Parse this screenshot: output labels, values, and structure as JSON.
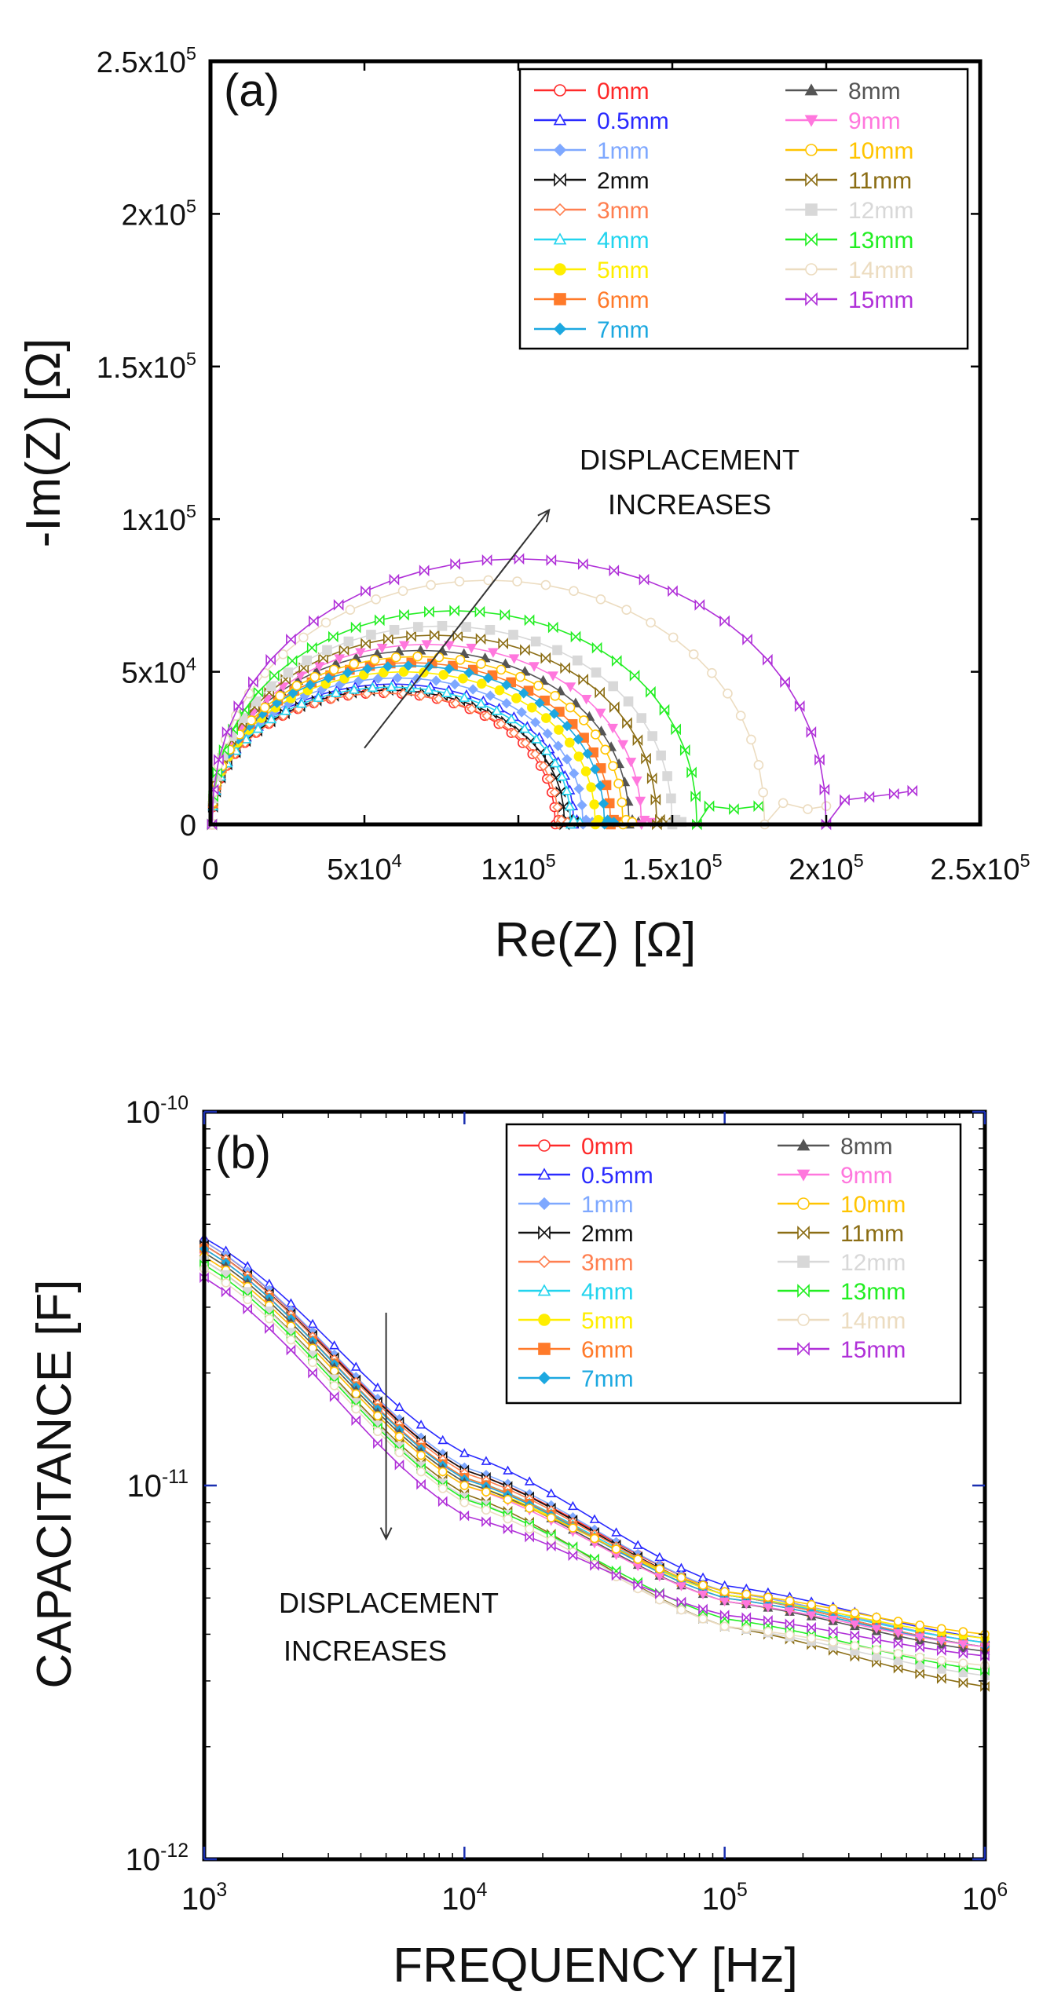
{
  "legend_entries": [
    {
      "label": "0mm",
      "color": "#ff2a2a",
      "marker": "circle-open"
    },
    {
      "label": "0.5mm",
      "color": "#2a2aff",
      "marker": "triangle-open"
    },
    {
      "label": "1mm",
      "color": "#7ea8ff",
      "marker": "diamond-filled"
    },
    {
      "label": "2mm",
      "color": "#111111",
      "marker": "bowtie"
    },
    {
      "label": "3mm",
      "color": "#ff7f50",
      "marker": "diamond-open"
    },
    {
      "label": "4mm",
      "color": "#22d4ee",
      "marker": "triangle-open"
    },
    {
      "label": "5mm",
      "color": "#ffee00",
      "marker": "circle-filled"
    },
    {
      "label": "6mm",
      "color": "#ff7a2a",
      "marker": "square-filled"
    },
    {
      "label": "7mm",
      "color": "#1ca8e0",
      "marker": "diamond-filled"
    },
    {
      "label": "8mm",
      "color": "#555555",
      "marker": "triangle-filled"
    },
    {
      "label": "9mm",
      "color": "#ff77dd",
      "marker": "triangle-down-filled"
    },
    {
      "label": "10mm",
      "color": "#ffc400",
      "marker": "circle-open"
    },
    {
      "label": "11mm",
      "color": "#8b6d14",
      "marker": "bowtie"
    },
    {
      "label": "12mm",
      "color": "#d8d8d8",
      "marker": "square-filled"
    },
    {
      "label": "13mm",
      "color": "#22ee22",
      "marker": "bowtie"
    },
    {
      "label": "14mm",
      "color": "#ecdcc0",
      "marker": "circle-open"
    },
    {
      "label": "15mm",
      "color": "#b030d8",
      "marker": "bowtie"
    }
  ],
  "chart_data": [
    {
      "type": "scatter",
      "panel_label": "(a)",
      "xlabel": "Re(Z) [Ω]",
      "ylabel": "-Im(Z) [Ω]",
      "xlim": [
        0,
        250000
      ],
      "ylim": [
        0,
        250000
      ],
      "xticks": [
        0,
        50000,
        100000,
        150000,
        200000,
        250000
      ],
      "yticks": [
        0,
        50000,
        100000,
        150000,
        200000,
        250000
      ],
      "xtick_labels": [
        {
          "base": "0",
          "exp": ""
        },
        {
          "base": "5x10",
          "exp": "4"
        },
        {
          "base": "1x10",
          "exp": "5"
        },
        {
          "base": "1.5x10",
          "exp": "5"
        },
        {
          "base": "2x10",
          "exp": "5"
        },
        {
          "base": "2.5x10",
          "exp": "5"
        }
      ],
      "ytick_labels": [
        {
          "base": "0",
          "exp": ""
        },
        {
          "base": "5x10",
          "exp": "4"
        },
        {
          "base": "1x10",
          "exp": "5"
        },
        {
          "base": "1.5x10",
          "exp": "5"
        },
        {
          "base": "2x10",
          "exp": "5"
        },
        {
          "base": "2.5x10",
          "exp": "5"
        }
      ],
      "annotation": {
        "lines": [
          "DISPLACEMENT",
          "INCREASES"
        ],
        "arrow_from": [
          50000,
          25000
        ],
        "arrow_to": [
          110000,
          103000
        ]
      },
      "series": [
        {
          "name": "0mm",
          "r0": 500,
          "r1": 112000,
          "peak": 43000,
          "tail": [
            [
              113000,
              1500
            ],
            [
              115000,
              800
            ]
          ]
        },
        {
          "name": "0.5mm",
          "r0": 500,
          "r1": 118000,
          "peak": 46000,
          "tail": [
            [
              119000,
              1500
            ],
            [
              121000,
              800
            ]
          ]
        },
        {
          "name": "1mm",
          "r0": 500,
          "r1": 121000,
          "peak": 48000,
          "tail": [
            [
              122000,
              1500
            ],
            [
              124000,
              800
            ]
          ]
        },
        {
          "name": "2mm",
          "r0": 500,
          "r1": 115000,
          "peak": 44000,
          "tail": [
            [
              116000,
              1500
            ],
            [
              118000,
              800
            ]
          ]
        },
        {
          "name": "3mm",
          "r0": 500,
          "r1": 113000,
          "peak": 43000,
          "tail": [
            [
              114000,
              1500
            ],
            [
              116000,
              800
            ]
          ]
        },
        {
          "name": "4mm",
          "r0": 500,
          "r1": 117000,
          "peak": 45000,
          "tail": [
            [
              118000,
              1500
            ],
            [
              120000,
              800
            ]
          ]
        },
        {
          "name": "5mm",
          "r0": 500,
          "r1": 125000,
          "peak": 50000,
          "tail": [
            [
              126000,
              1500
            ],
            [
              128000,
              800
            ]
          ]
        },
        {
          "name": "6mm",
          "r0": 500,
          "r1": 130000,
          "peak": 53000,
          "tail": [
            [
              131000,
              1500
            ],
            [
              133000,
              800
            ]
          ]
        },
        {
          "name": "7mm",
          "r0": 500,
          "r1": 128000,
          "peak": 52000,
          "tail": [
            [
              129000,
              1500
            ],
            [
              131000,
              800
            ]
          ]
        },
        {
          "name": "8mm",
          "r0": 500,
          "r1": 136000,
          "peak": 57000,
          "tail": [
            [
              137000,
              1500
            ],
            [
              139000,
              800
            ]
          ]
        },
        {
          "name": "9mm",
          "r0": 500,
          "r1": 140000,
          "peak": 59000,
          "tail": [
            [
              141000,
              1500
            ],
            [
              143000,
              800
            ]
          ]
        },
        {
          "name": "10mm",
          "r0": 500,
          "r1": 134000,
          "peak": 55000,
          "tail": [
            [
              135000,
              1500
            ],
            [
              137000,
              800
            ]
          ]
        },
        {
          "name": "11mm",
          "r0": 500,
          "r1": 145000,
          "peak": 62000,
          "tail": [
            [
              146000,
              1500
            ],
            [
              148000,
              800
            ]
          ]
        },
        {
          "name": "12mm",
          "r0": 500,
          "r1": 150000,
          "peak": 65000,
          "tail": [
            [
              151000,
              1500
            ],
            [
              153000,
              800
            ]
          ]
        },
        {
          "name": "13mm",
          "r0": 500,
          "r1": 158000,
          "peak": 70000,
          "tail": [
            [
              162000,
              6000
            ],
            [
              170000,
              5000
            ],
            [
              178000,
              6000
            ]
          ]
        },
        {
          "name": "14mm",
          "r0": 500,
          "r1": 180000,
          "peak": 80000,
          "tail": [
            [
              186000,
              7000
            ],
            [
              194000,
              5000
            ],
            [
              200000,
              6000
            ]
          ]
        },
        {
          "name": "15mm",
          "r0": 500,
          "r1": 200000,
          "peak": 87000,
          "tail": [
            [
              206000,
              8000
            ],
            [
              214000,
              9000
            ],
            [
              222000,
              10000
            ],
            [
              228000,
              11000
            ]
          ]
        }
      ]
    },
    {
      "type": "scatter",
      "panel_label": "(b)",
      "xscale": "log",
      "yscale": "log",
      "xlabel": "FREQUENCY [Hz]",
      "ylabel": "CAPACITANCE [F]",
      "xlim": [
        1000,
        1000000
      ],
      "ylim": [
        1e-12,
        1e-10
      ],
      "xtick_labels": [
        {
          "base": "10",
          "exp": "3"
        },
        {
          "base": "10",
          "exp": "4"
        },
        {
          "base": "10",
          "exp": "5"
        },
        {
          "base": "10",
          "exp": "6"
        }
      ],
      "ytick_labels": [
        {
          "base": "10",
          "exp": "-12"
        },
        {
          "base": "10",
          "exp": "-11"
        },
        {
          "base": "10",
          "exp": "-10"
        }
      ],
      "annotation": {
        "lines": [
          "DISPLACEMENT",
          "INCREASES"
        ],
        "arrow_from": [
          5000,
          2.9e-11
        ],
        "arrow_to": [
          5000,
          7.2e-12
        ]
      },
      "series": [
        {
          "name": "0mm",
          "points": [
            [
              1000,
              4.5e-11
            ],
            [
              10000,
              1.1e-11
            ],
            [
              100000,
              5.2e-12
            ],
            [
              1000000,
              3.8e-12
            ]
          ]
        },
        {
          "name": "0.5mm",
          "points": [
            [
              1000,
              4.6e-11
            ],
            [
              10000,
              1.22e-11
            ],
            [
              100000,
              5.4e-12
            ],
            [
              1000000,
              3.9e-12
            ]
          ]
        },
        {
          "name": "1mm",
          "points": [
            [
              1000,
              4.5e-11
            ],
            [
              10000,
              1.12e-11
            ],
            [
              100000,
              5.2e-12
            ],
            [
              1000000,
              3.8e-12
            ]
          ]
        },
        {
          "name": "2mm",
          "points": [
            [
              1000,
              4.4e-11
            ],
            [
              10000,
              1.1e-11
            ],
            [
              100000,
              5.1e-12
            ],
            [
              1000000,
              3.7e-12
            ]
          ]
        },
        {
          "name": "3mm",
          "points": [
            [
              1000,
              4.4e-11
            ],
            [
              10000,
              1.08e-11
            ],
            [
              100000,
              5.1e-12
            ],
            [
              1000000,
              3.7e-12
            ]
          ]
        },
        {
          "name": "4mm",
          "points": [
            [
              1000,
              4.3e-11
            ],
            [
              10000,
              1.05e-11
            ],
            [
              100000,
              5.1e-12
            ],
            [
              1000000,
              3.8e-12
            ]
          ]
        },
        {
          "name": "5mm",
          "points": [
            [
              1000,
              4.2e-11
            ],
            [
              10000,
              1.02e-11
            ],
            [
              100000,
              5.1e-12
            ],
            [
              1000000,
              3.9e-12
            ]
          ]
        },
        {
          "name": "6mm",
          "points": [
            [
              1000,
              4.3e-11
            ],
            [
              10000,
              1.05e-11
            ],
            [
              100000,
              5e-12
            ],
            [
              1000000,
              3.7e-12
            ]
          ]
        },
        {
          "name": "7mm",
          "points": [
            [
              1000,
              4.3e-11
            ],
            [
              10000,
              1.04e-11
            ],
            [
              100000,
              5e-12
            ],
            [
              1000000,
              3.7e-12
            ]
          ]
        },
        {
          "name": "8mm",
          "points": [
            [
              1000,
              4.2e-11
            ],
            [
              10000,
              1.02e-11
            ],
            [
              100000,
              4.9e-12
            ],
            [
              1000000,
              3.6e-12
            ]
          ]
        },
        {
          "name": "9mm",
          "points": [
            [
              1000,
              4.1e-11
            ],
            [
              10000,
              1e-11
            ],
            [
              100000,
              4.9e-12
            ],
            [
              1000000,
              3.7e-12
            ]
          ]
        },
        {
          "name": "10mm",
          "points": [
            [
              1000,
              4.1e-11
            ],
            [
              10000,
              1e-11
            ],
            [
              100000,
              5.2e-12
            ],
            [
              1000000,
              4e-12
            ]
          ]
        },
        {
          "name": "11mm",
          "points": [
            [
              1000,
              4e-11
            ],
            [
              10000,
              9.5e-12
            ],
            [
              100000,
              4.2e-12
            ],
            [
              1000000,
              2.9e-12
            ]
          ]
        },
        {
          "name": "12mm",
          "points": [
            [
              1000,
              4e-11
            ],
            [
              10000,
              9.3e-12
            ],
            [
              100000,
              4.2e-12
            ],
            [
              1000000,
              3.1e-12
            ]
          ]
        },
        {
          "name": "13mm",
          "points": [
            [
              1000,
              3.9e-11
            ],
            [
              10000,
              9.2e-12
            ],
            [
              100000,
              4.4e-12
            ],
            [
              1000000,
              3.2e-12
            ]
          ]
        },
        {
          "name": "14mm",
          "points": [
            [
              1000,
              3.8e-11
            ],
            [
              10000,
              9e-12
            ],
            [
              100000,
              4.2e-12
            ],
            [
              1000000,
              3.3e-12
            ]
          ]
        },
        {
          "name": "15mm",
          "points": [
            [
              1000,
              3.6e-11
            ],
            [
              10000,
              8.3e-12
            ],
            [
              100000,
              4.5e-12
            ],
            [
              1000000,
              3.5e-12
            ]
          ]
        }
      ]
    }
  ]
}
